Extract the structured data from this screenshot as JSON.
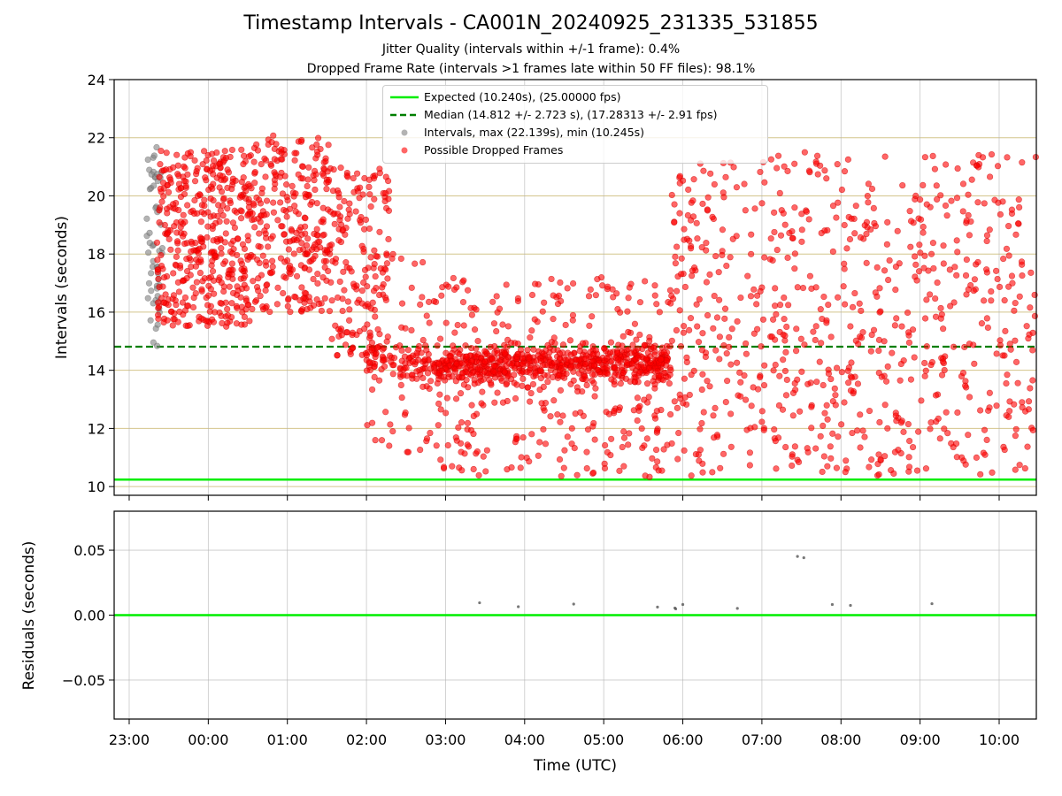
{
  "title": "Timestamp Intervals - CA001N_20240925_231335_531855",
  "subtitle_jitter": "Jitter Quality (intervals within +/-1 frame): 0.4%",
  "subtitle_dropped": "Dropped Frame Rate (intervals >1 frames late within 50 FF files): 98.1%",
  "legend": {
    "expected": "Expected (10.240s), (25.00000 fps)",
    "median": "Median (14.812 +/- 2.723 s), (17.28313 +/- 2.91 fps)",
    "intervals": "Intervals, max (22.139s), min (10.245s)",
    "dropped": "Possible Dropped Frames"
  },
  "colors": {
    "expected": "#00ee00",
    "median": "#007f00",
    "intervals": "#808080",
    "dropped": "#ff0000",
    "grid_top": "#d4c58c",
    "grid": "#b0b0b0"
  },
  "chart_data": [
    {
      "type": "scatter",
      "ylabel": "Intervals (seconds)",
      "xlim": [
        22.81,
        34.47
      ],
      "ylim": [
        9.7,
        24
      ],
      "yticks": [
        "10",
        "12",
        "14",
        "16",
        "18",
        "20",
        "22",
        "24"
      ],
      "ytick_values": [
        10,
        12,
        14,
        16,
        18,
        20,
        22,
        24
      ],
      "grid": true,
      "legend_position": "top-center",
      "expected_line": 10.24,
      "median_line": 14.812,
      "max_interval": 22.139,
      "min_interval": 10.245,
      "series": [
        {
          "name": "Intervals, max (22.139s), min (10.245s)",
          "x_range": [
            23.22,
            23.42
          ],
          "y_range": [
            14.8,
            21.7
          ],
          "count": 55
        },
        {
          "name": "Possible Dropped Frames",
          "segments": [
            {
              "x_range": [
                23.35,
                24.55
              ],
              "y_range": [
                15.5,
                21.6
              ],
              "count": 420
            },
            {
              "x_range": [
                24.55,
                25.55
              ],
              "y_range": [
                16.0,
                22.1
              ],
              "count": 280
            },
            {
              "x_range": [
                25.55,
                26.3
              ],
              "y_range": [
                14.5,
                21.0
              ],
              "count": 160
            },
            {
              "x_range": [
                26.0,
                26.9
              ],
              "y_range": [
                11.0,
                18.0
              ],
              "count": 150
            },
            {
              "x_range": [
                26.9,
                29.85
              ],
              "y_range": [
                10.3,
                17.2
              ],
              "count": 900
            },
            {
              "x_range": [
                29.85,
                30.3
              ],
              "y_range": [
                10.3,
                21.2
              ],
              "count": 90
            },
            {
              "x_range": [
                30.3,
                34.47
              ],
              "y_range": [
                10.3,
                21.5
              ],
              "count": 620
            }
          ]
        }
      ]
    },
    {
      "type": "scatter",
      "xlabel": "Time (UTC)",
      "ylabel": "Residuals (seconds)",
      "xlim": [
        22.81,
        34.47
      ],
      "ylim": [
        -0.08,
        0.08
      ],
      "yticks": [
        "0.05",
        "0.00",
        "−0.05"
      ],
      "ytick_values": [
        0.05,
        0.0,
        -0.05
      ],
      "xticks": [
        "23:00",
        "00:00",
        "01:00",
        "02:00",
        "03:00",
        "04:00",
        "05:00",
        "06:00",
        "07:00",
        "08:00",
        "09:00",
        "10:00"
      ],
      "xtick_values": [
        23,
        24,
        25,
        26,
        27,
        28,
        29,
        30,
        31,
        32,
        33,
        34
      ],
      "grid": true,
      "zero_line": 0.0,
      "points": [
        {
          "x": 27.43,
          "y": 0.0095
        },
        {
          "x": 27.92,
          "y": 0.0065
        },
        {
          "x": 28.62,
          "y": 0.0085
        },
        {
          "x": 29.68,
          "y": 0.0062
        },
        {
          "x": 29.9,
          "y": 0.0055
        },
        {
          "x": 29.91,
          "y": 0.0048
        },
        {
          "x": 30.0,
          "y": 0.0082
        },
        {
          "x": 30.69,
          "y": 0.0052
        },
        {
          "x": 31.45,
          "y": 0.0452
        },
        {
          "x": 31.53,
          "y": 0.0442
        },
        {
          "x": 31.89,
          "y": 0.0082
        },
        {
          "x": 32.12,
          "y": 0.0075
        },
        {
          "x": 33.15,
          "y": 0.0088
        }
      ]
    }
  ]
}
